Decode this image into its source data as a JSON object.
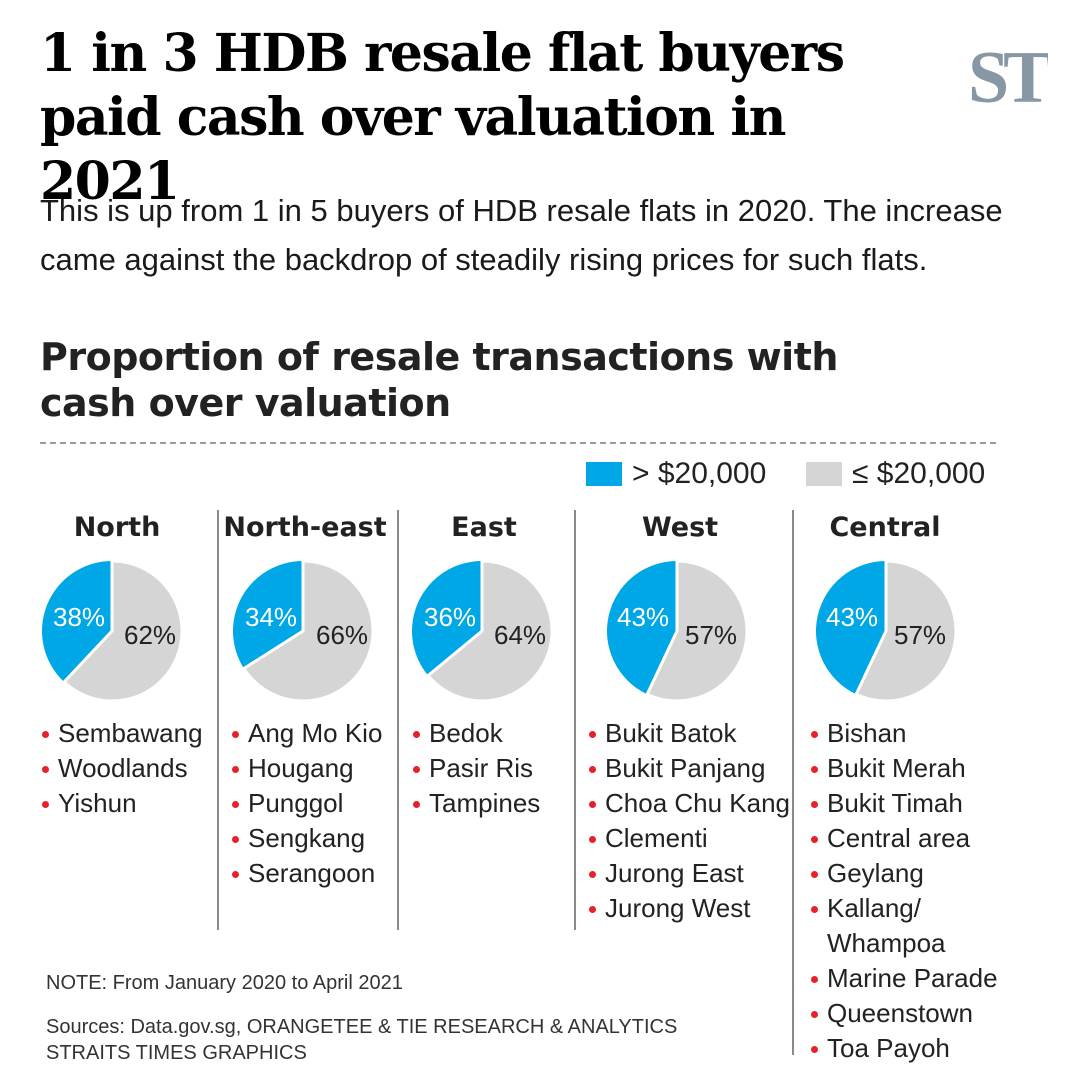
{
  "header": {
    "headline": "1 in 3 HDB resale flat buyers paid cash over valuation in 2021",
    "logo": "ST",
    "standfirst": "This is up from 1 in 5 buyers of HDB resale flats in 2020. The increase came against the backdrop of steadily rising prices for such flats."
  },
  "chart_data": {
    "type": "pie",
    "title": "Proportion of resale transactions with cash over valuation",
    "legend": [
      {
        "label": "> $20,000",
        "color": "#00a7e6"
      },
      {
        "label": "≤ $20,000",
        "color": "#d5d5d5"
      }
    ],
    "legend_position": "top-right",
    "series": [
      {
        "region": "North",
        "values": [
          38,
          62
        ],
        "labels": [
          "38%",
          "62%"
        ],
        "areas": [
          "Sembawang",
          "Woodlands",
          "Yishun"
        ]
      },
      {
        "region": "North-east",
        "values": [
          34,
          66
        ],
        "labels": [
          "34%",
          "66%"
        ],
        "areas": [
          "Ang Mo Kio",
          "Hougang",
          "Punggol",
          "Sengkang",
          "Serangoon"
        ]
      },
      {
        "region": "East",
        "values": [
          36,
          64
        ],
        "labels": [
          "36%",
          "64%"
        ],
        "areas": [
          "Bedok",
          "Pasir Ris",
          "Tampines"
        ]
      },
      {
        "region": "West",
        "values": [
          43,
          57
        ],
        "labels": [
          "43%",
          "57%"
        ],
        "areas": [
          "Bukit Batok",
          "Bukit Panjang",
          "Choa Chu Kang",
          "Clementi",
          "Jurong East",
          "Jurong West"
        ]
      },
      {
        "region": "Central",
        "values": [
          43,
          57
        ],
        "labels": [
          "43%",
          "57%"
        ],
        "areas": [
          "Bishan",
          "Bukit Merah",
          "Bukit Timah",
          "Central area",
          "Geylang",
          "Kallang/\nWhampoa",
          "Marine Parade",
          "Queenstown",
          "Toa Payoh"
        ]
      }
    ]
  },
  "footer": {
    "note": "NOTE: From January 2020 to April 2021",
    "sources": "Sources: Data.gov.sg, ORANGETEE & TIE RESEARCH & ANALYTICS",
    "credit": "STRAITS TIMES GRAPHICS"
  }
}
